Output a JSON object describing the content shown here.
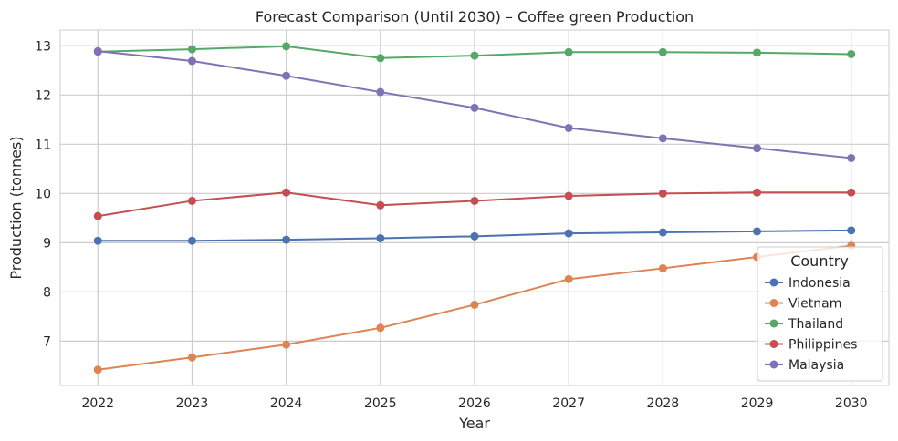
{
  "chart_data": {
    "type": "line",
    "title": "Forecast Comparison (Until 2030) – Coffee green Production",
    "xlabel": "Year",
    "ylabel": "Production (tonnes)",
    "x": [
      2022,
      2023,
      2024,
      2025,
      2026,
      2027,
      2028,
      2029,
      2030
    ],
    "xlim": [
      2021.6,
      2030.4
    ],
    "ylim": [
      6.1,
      13.32
    ],
    "yticks": [
      7,
      8,
      9,
      10,
      11,
      12,
      13
    ],
    "grid": true,
    "legend": {
      "title": "Country",
      "placement": "right"
    },
    "series": [
      {
        "name": "Indonesia",
        "color": "#4c72b0",
        "values": [
          9.04,
          9.04,
          9.06,
          9.09,
          9.13,
          9.19,
          9.21,
          9.23,
          9.25
        ]
      },
      {
        "name": "Vietnam",
        "color": "#dd8452",
        "values": [
          6.42,
          6.67,
          6.93,
          7.27,
          7.74,
          8.26,
          8.48,
          8.71,
          8.94
        ]
      },
      {
        "name": "Thailand",
        "color": "#55a868",
        "values": [
          12.88,
          12.93,
          12.99,
          12.75,
          12.8,
          12.87,
          12.87,
          12.86,
          12.83
        ]
      },
      {
        "name": "Philippines",
        "color": "#c44e52",
        "values": [
          9.54,
          9.85,
          10.02,
          9.76,
          9.85,
          9.95,
          10.0,
          10.02,
          10.02
        ]
      },
      {
        "name": "Malaysia",
        "color": "#8172b3",
        "values": [
          12.89,
          12.69,
          12.39,
          12.06,
          11.74,
          11.33,
          11.12,
          10.92,
          10.72
        ]
      }
    ]
  }
}
